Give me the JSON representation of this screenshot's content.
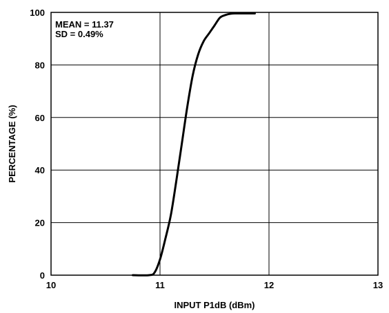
{
  "chart_data": {
    "type": "line",
    "title": "",
    "xlabel": "INPUT P1dB (dBm)",
    "ylabel": "PERCENTAGE (%)",
    "xlim": [
      10,
      13
    ],
    "ylim": [
      0,
      100
    ],
    "xticks": [
      "10",
      "11",
      "12",
      "13"
    ],
    "yticks": [
      "0",
      "20",
      "40",
      "60",
      "80",
      "100"
    ],
    "grid": true,
    "annotations": [
      "MEAN = 11.37",
      "SD = 0.49%"
    ],
    "series": [
      {
        "x": [
          10.75,
          10.9,
          10.95,
          11.0,
          11.05,
          11.1,
          11.15,
          11.2,
          11.25,
          11.3,
          11.35,
          11.4,
          11.45,
          11.5,
          11.55,
          11.6,
          11.65,
          11.7,
          11.87
        ],
        "y": [
          0,
          0,
          1,
          6,
          14,
          23,
          36,
          50,
          64,
          76,
          84,
          89,
          92,
          95,
          98,
          99,
          99.5,
          99.6,
          99.6
        ]
      }
    ],
    "line_color": "#000000"
  }
}
